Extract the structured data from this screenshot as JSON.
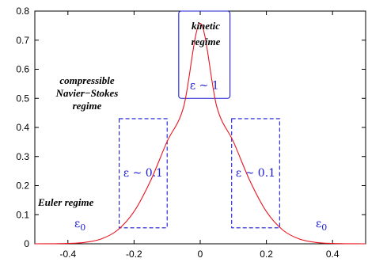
{
  "chart_data": {
    "type": "line",
    "title": "",
    "xlabel": "",
    "ylabel": "",
    "xlim": [
      -0.5,
      0.5
    ],
    "ylim": [
      0,
      0.8
    ],
    "x_ticks": [
      -0.4,
      -0.2,
      0,
      0.2,
      0.4
    ],
    "x_tick_labels": [
      "-0.4",
      "-0.2",
      "0",
      "0.2",
      "0.4"
    ],
    "y_ticks": [
      0,
      0.1,
      0.2,
      0.3,
      0.4,
      0.5,
      0.6,
      0.7,
      0.8
    ],
    "y_tick_labels": [
      "0",
      "0.1",
      "0.2",
      "0.3",
      "0.4",
      "0.5",
      "0.6",
      "0.7",
      "0.8"
    ],
    "grid": false,
    "series": [
      {
        "color": "#e8141e",
        "x": [
          -0.5,
          -0.45,
          -0.4,
          -0.35,
          -0.3,
          -0.25,
          -0.2,
          -0.15,
          -0.1,
          -0.05,
          0,
          0.05,
          0.1,
          0.15,
          0.2,
          0.25,
          0.3,
          0.35,
          0.4,
          0.45,
          0.5
        ],
        "y": [
          0.0,
          0.0002,
          0.0011,
          0.0047,
          0.0164,
          0.0469,
          0.1109,
          0.2171,
          0.3518,
          0.4716,
          0.758,
          0.4716,
          0.3518,
          0.2171,
          0.1109,
          0.0469,
          0.0164,
          0.0047,
          0.0011,
          0.0002,
          0.0
        ]
      }
    ],
    "regions": [
      {
        "label": "ε ~ 1",
        "style": "solid",
        "x": [
          -0.065,
          0.09
        ],
        "y": [
          0.5,
          0.8
        ],
        "color": "#1b1bd6"
      },
      {
        "label": "ε ~ 0.1",
        "style": "dashed",
        "x": [
          -0.245,
          -0.1
        ],
        "y": [
          0.055,
          0.43
        ],
        "color": "#1b1bd6"
      },
      {
        "label": "ε ~ 0.1",
        "style": "dashed",
        "x": [
          0.095,
          0.24
        ],
        "y": [
          0.055,
          0.43
        ],
        "color": "#1b1bd6"
      }
    ],
    "annotations": [
      {
        "id": "kinetic",
        "lines": [
          "kinetic",
          "regime"
        ]
      },
      {
        "id": "ns",
        "lines": [
          "compressible",
          "Navier−Stokes",
          "regime"
        ]
      },
      {
        "id": "euler",
        "lines": [
          "Euler regime"
        ]
      },
      {
        "id": "eps0_left",
        "text": "ε",
        "sub": "0"
      },
      {
        "id": "eps0_right",
        "text": "ε",
        "sub": "0"
      }
    ]
  }
}
